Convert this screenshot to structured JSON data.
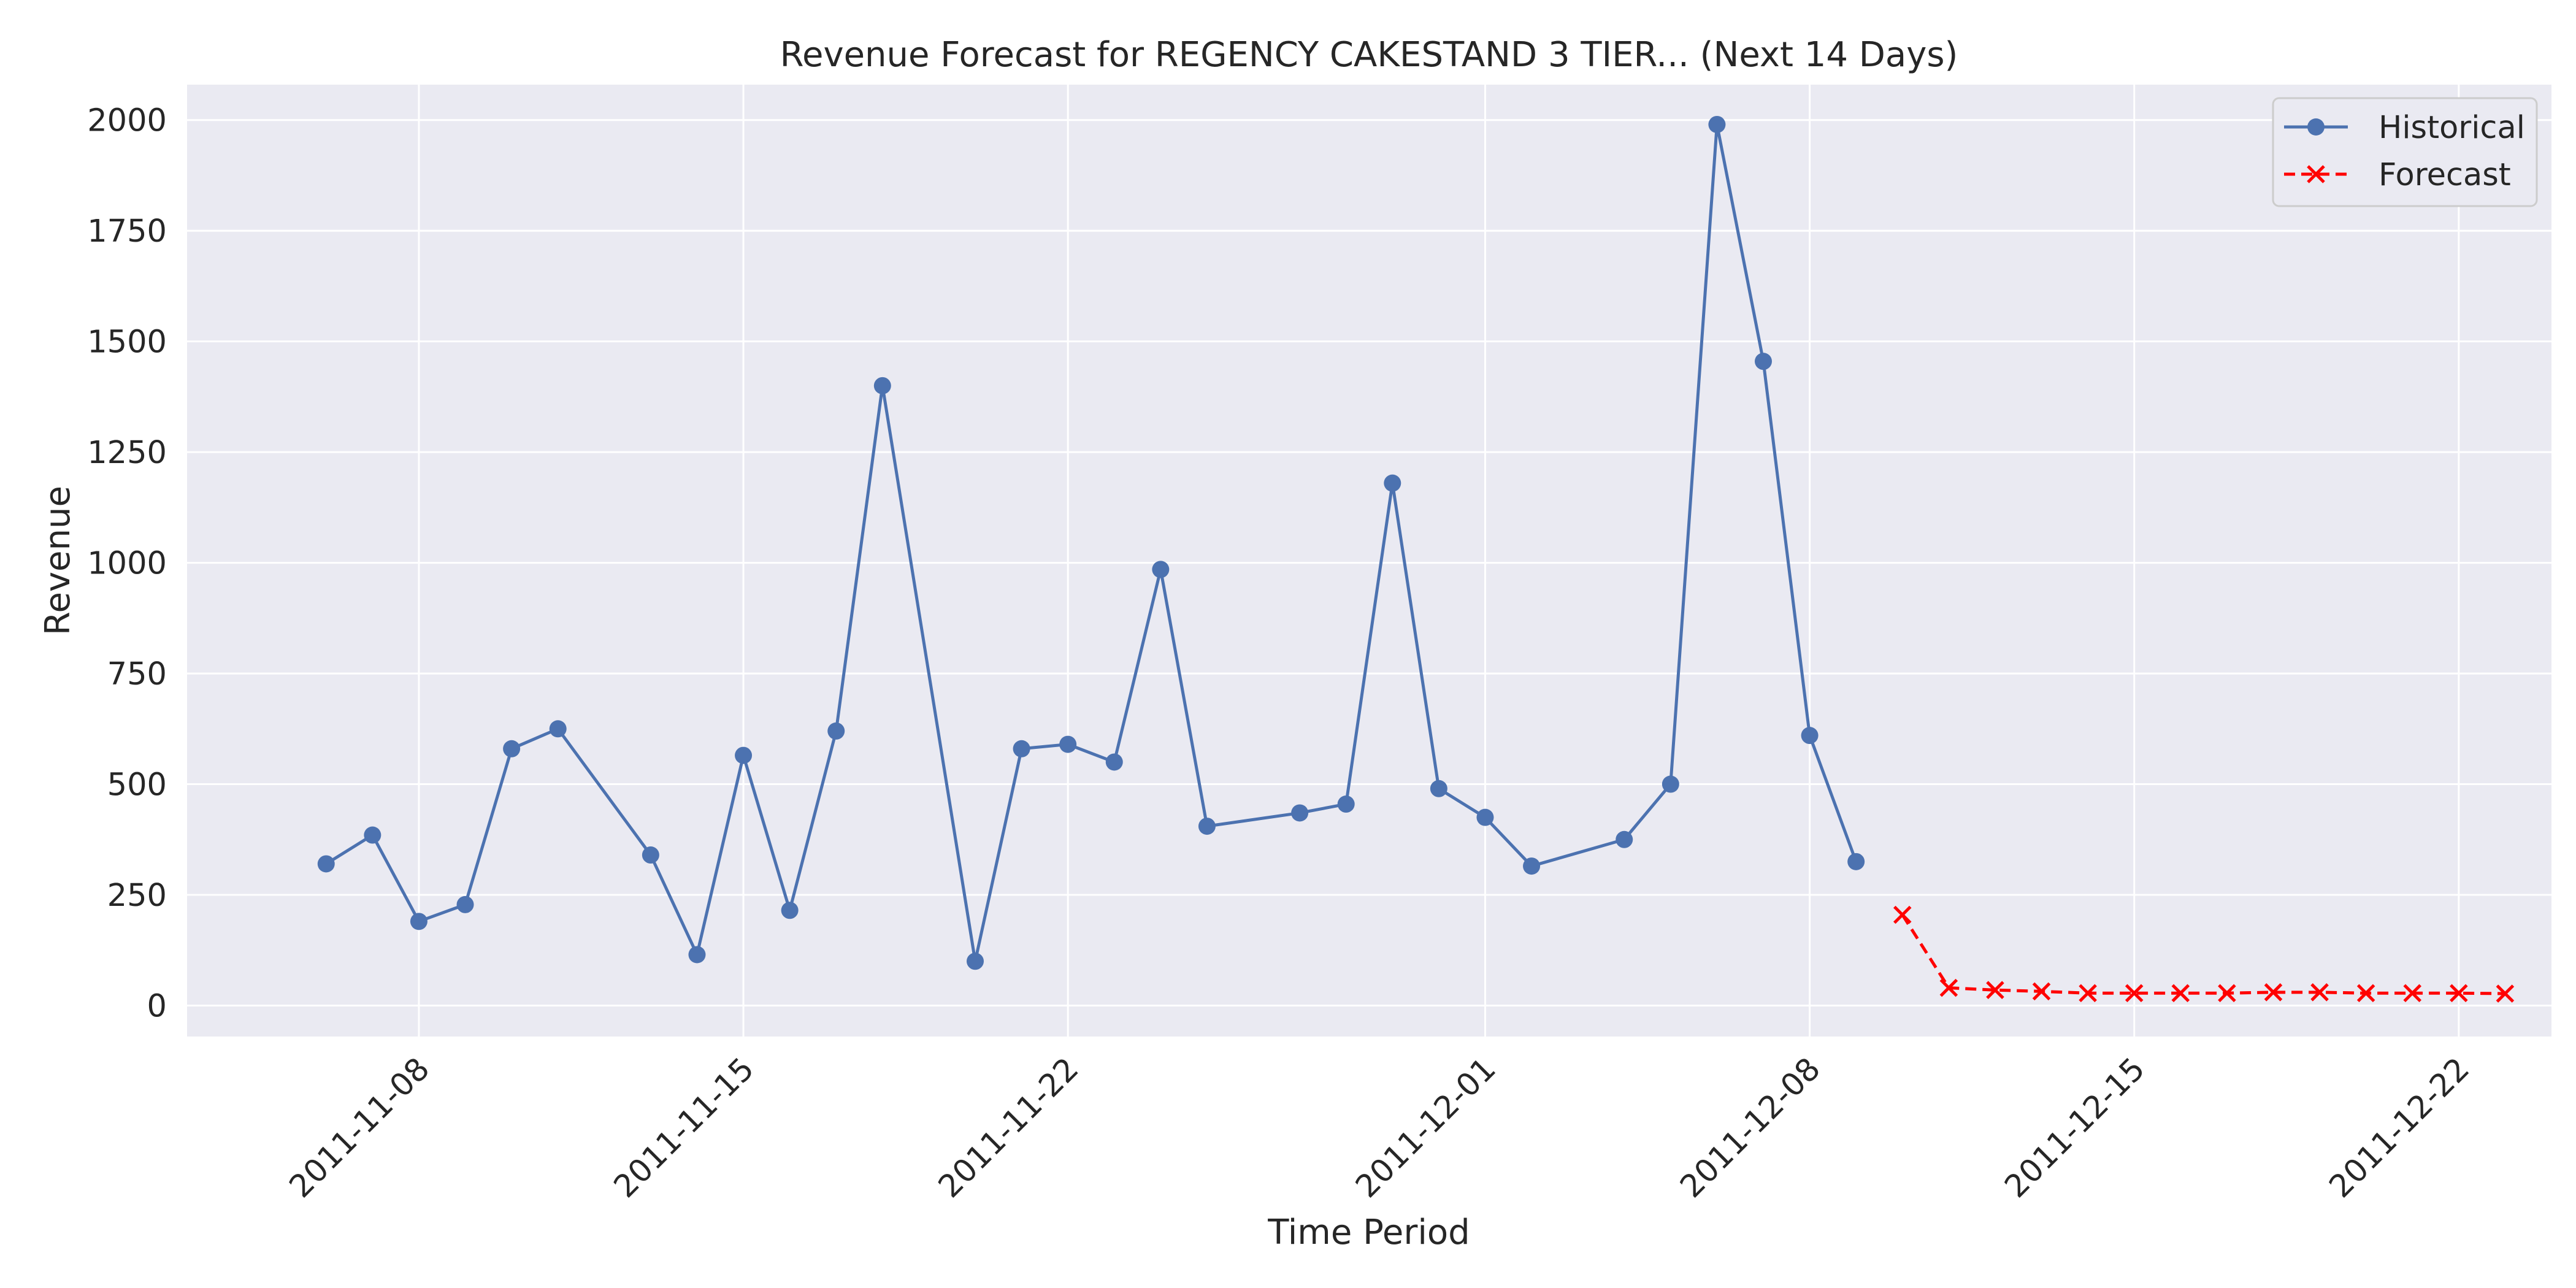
{
  "chart_data": {
    "type": "line",
    "title": "Revenue Forecast for REGENCY CAKESTAND 3 TIER... (Next 14 Days)",
    "xlabel": "Time Period",
    "ylabel": "Revenue",
    "x_range": [
      "2011-11-03",
      "2011-12-24"
    ],
    "ylim": [
      -70,
      2080
    ],
    "y_ticks": [
      0,
      250,
      500,
      750,
      1000,
      1250,
      1500,
      1750,
      2000
    ],
    "x_ticks": [
      "2011-11-08",
      "2011-11-15",
      "2011-11-22",
      "2011-12-01",
      "2011-12-08",
      "2011-12-15",
      "2011-12-22"
    ],
    "grid": true,
    "legend_position": "top-right",
    "series": [
      {
        "name": "Historical",
        "style": "solid line with circle markers",
        "color": "#4c72b0",
        "x": [
          "2011-11-06",
          "2011-11-07",
          "2011-11-08",
          "2011-11-09",
          "2011-11-10",
          "2011-11-11",
          "2011-11-13",
          "2011-11-14",
          "2011-11-15",
          "2011-11-16",
          "2011-11-17",
          "2011-11-18",
          "2011-11-20",
          "2011-11-21",
          "2011-11-22",
          "2011-11-23",
          "2011-11-24",
          "2011-11-25",
          "2011-11-27",
          "2011-11-28",
          "2011-11-29",
          "2011-11-30",
          "2011-12-01",
          "2011-12-02",
          "2011-12-04",
          "2011-12-05",
          "2011-12-06",
          "2011-12-07",
          "2011-12-08",
          "2011-12-09"
        ],
        "values": [
          320,
          385,
          190,
          228,
          580,
          625,
          340,
          115,
          565,
          215,
          620,
          1400,
          100,
          580,
          590,
          550,
          985,
          405,
          435,
          455,
          1180,
          490,
          425,
          315,
          375,
          500,
          1990,
          1455,
          610,
          325
        ]
      },
      {
        "name": "Forecast",
        "style": "dashed line with x markers",
        "color": "#ff0000",
        "x": [
          "2011-12-10",
          "2011-12-11",
          "2011-12-12",
          "2011-12-13",
          "2011-12-14",
          "2011-12-15",
          "2011-12-16",
          "2011-12-17",
          "2011-12-18",
          "2011-12-19",
          "2011-12-20",
          "2011-12-21",
          "2011-12-22",
          "2011-12-23"
        ],
        "values": [
          205,
          40,
          35,
          32,
          28,
          28,
          28,
          28,
          30,
          30,
          28,
          28,
          28,
          27
        ]
      }
    ]
  }
}
